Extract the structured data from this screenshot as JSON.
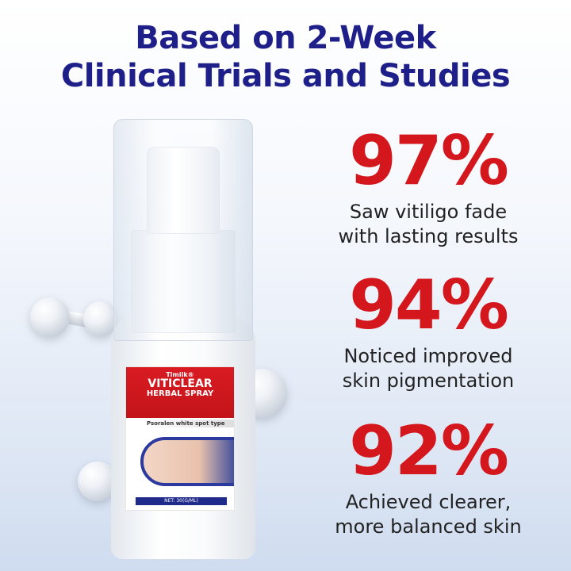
{
  "headline": {
    "line1": "Based on 2-Week",
    "line2": "Clinical Trials and Studies"
  },
  "stats": [
    {
      "value": "97%",
      "line1": "Saw vitiligo fade",
      "line2": "with lasting results"
    },
    {
      "value": "94%",
      "line1": "Noticed improved",
      "line2": "skin pigmentation"
    },
    {
      "value": "92%",
      "line1": "Achieved clearer,",
      "line2": "more balanced skin"
    }
  ],
  "product": {
    "brand": "Timilk®",
    "name": "VITICLEAR",
    "subtitle": "HERBAL SPRAY",
    "type": "Psoralen white spot type",
    "net": "NET: 30(G/ML)"
  },
  "colors": {
    "headline": "#1f1f8a",
    "stat": "#d4161d",
    "label_red": "#d91b22"
  }
}
